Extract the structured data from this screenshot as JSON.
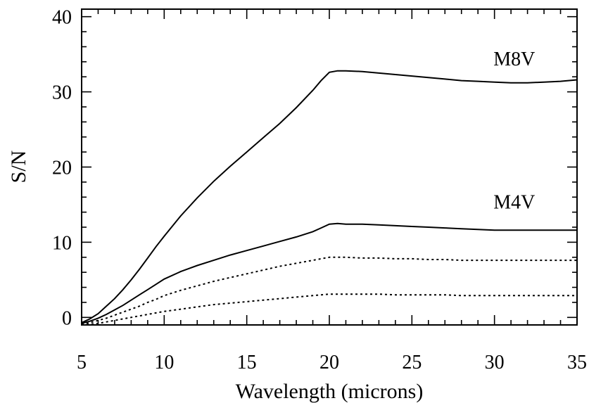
{
  "chart_data": {
    "type": "line",
    "title": "",
    "xlabel": "Wavelength (microns)",
    "ylabel": "S/N",
    "xlim": [
      5,
      35
    ],
    "ylim": [
      -1,
      41
    ],
    "xticks": [
      5,
      10,
      15,
      20,
      25,
      30,
      35
    ],
    "yticks": [
      0,
      10,
      20,
      30,
      40
    ],
    "grid": false,
    "legend": "none",
    "annotations": [
      {
        "text": "M8V",
        "x": 31.2,
        "y": 33.5
      },
      {
        "text": "M4V",
        "x": 31.2,
        "y": 14.5
      }
    ],
    "series": [
      {
        "style": "solid",
        "x": [
          5,
          5.5,
          6,
          6.5,
          7,
          7.5,
          8,
          8.5,
          9,
          9.5,
          10,
          11,
          12,
          13,
          14,
          15,
          16,
          17,
          18,
          19,
          19.5,
          20,
          20.5,
          21,
          22,
          23,
          24,
          25,
          26,
          27,
          28,
          29,
          30,
          31,
          32,
          33,
          34,
          35
        ],
        "y": [
          -0.7,
          -0.2,
          0.5,
          1.5,
          2.5,
          3.7,
          5.0,
          6.4,
          7.9,
          9.4,
          10.8,
          13.5,
          15.9,
          18.1,
          20.1,
          22.0,
          23.9,
          25.8,
          27.9,
          30.2,
          31.5,
          32.6,
          32.8,
          32.8,
          32.7,
          32.5,
          32.3,
          32.1,
          31.9,
          31.7,
          31.5,
          31.4,
          31.3,
          31.2,
          31.2,
          31.3,
          31.4,
          31.6
        ]
      },
      {
        "style": "solid",
        "x": [
          5,
          5.5,
          6,
          6.5,
          7,
          7.5,
          8,
          8.5,
          9,
          9.5,
          10,
          11,
          12,
          13,
          14,
          15,
          16,
          17,
          18,
          19,
          19.5,
          20,
          20.5,
          21,
          22,
          23,
          24,
          25,
          26,
          27,
          28,
          29,
          30,
          31,
          32,
          33,
          34,
          35
        ],
        "y": [
          -0.8,
          -0.5,
          -0.1,
          0.4,
          1.0,
          1.6,
          2.3,
          3.0,
          3.7,
          4.4,
          5.1,
          6.1,
          6.9,
          7.6,
          8.3,
          8.9,
          9.5,
          10.1,
          10.7,
          11.4,
          11.9,
          12.4,
          12.5,
          12.4,
          12.4,
          12.3,
          12.2,
          12.1,
          12.0,
          11.9,
          11.8,
          11.7,
          11.6,
          11.6,
          11.6,
          11.6,
          11.6,
          11.6
        ]
      },
      {
        "style": "dotted",
        "x": [
          5,
          5.5,
          6,
          6.5,
          7,
          7.5,
          8,
          8.5,
          9,
          9.5,
          10,
          11,
          12,
          13,
          14,
          15,
          16,
          17,
          18,
          19,
          19.5,
          20,
          20.5,
          21,
          22,
          23,
          24,
          25,
          26,
          27,
          28,
          29,
          30,
          31,
          32,
          33,
          34,
          35
        ],
        "y": [
          -0.9,
          -0.7,
          -0.4,
          -0.1,
          0.3,
          0.7,
          1.1,
          1.5,
          2.0,
          2.4,
          2.9,
          3.6,
          4.2,
          4.8,
          5.3,
          5.8,
          6.3,
          6.8,
          7.2,
          7.6,
          7.8,
          8.0,
          8.0,
          8.0,
          7.9,
          7.9,
          7.8,
          7.8,
          7.7,
          7.7,
          7.6,
          7.6,
          7.6,
          7.6,
          7.6,
          7.6,
          7.6,
          7.6
        ]
      },
      {
        "style": "dotted",
        "x": [
          5,
          5.5,
          6,
          6.5,
          7,
          7.5,
          8,
          8.5,
          9,
          9.5,
          10,
          11,
          12,
          13,
          14,
          15,
          16,
          17,
          18,
          19,
          19.5,
          20,
          20.5,
          21,
          22,
          23,
          24,
          25,
          26,
          27,
          28,
          29,
          30,
          31,
          32,
          33,
          34,
          35
        ],
        "y": [
          -1.0,
          -0.9,
          -0.8,
          -0.6,
          -0.4,
          -0.2,
          0.0,
          0.2,
          0.4,
          0.6,
          0.8,
          1.1,
          1.4,
          1.7,
          1.9,
          2.1,
          2.3,
          2.5,
          2.7,
          2.9,
          3.0,
          3.1,
          3.1,
          3.1,
          3.1,
          3.1,
          3.0,
          3.0,
          3.0,
          3.0,
          2.9,
          2.9,
          2.9,
          2.9,
          2.9,
          2.9,
          2.9,
          2.9
        ]
      }
    ]
  }
}
